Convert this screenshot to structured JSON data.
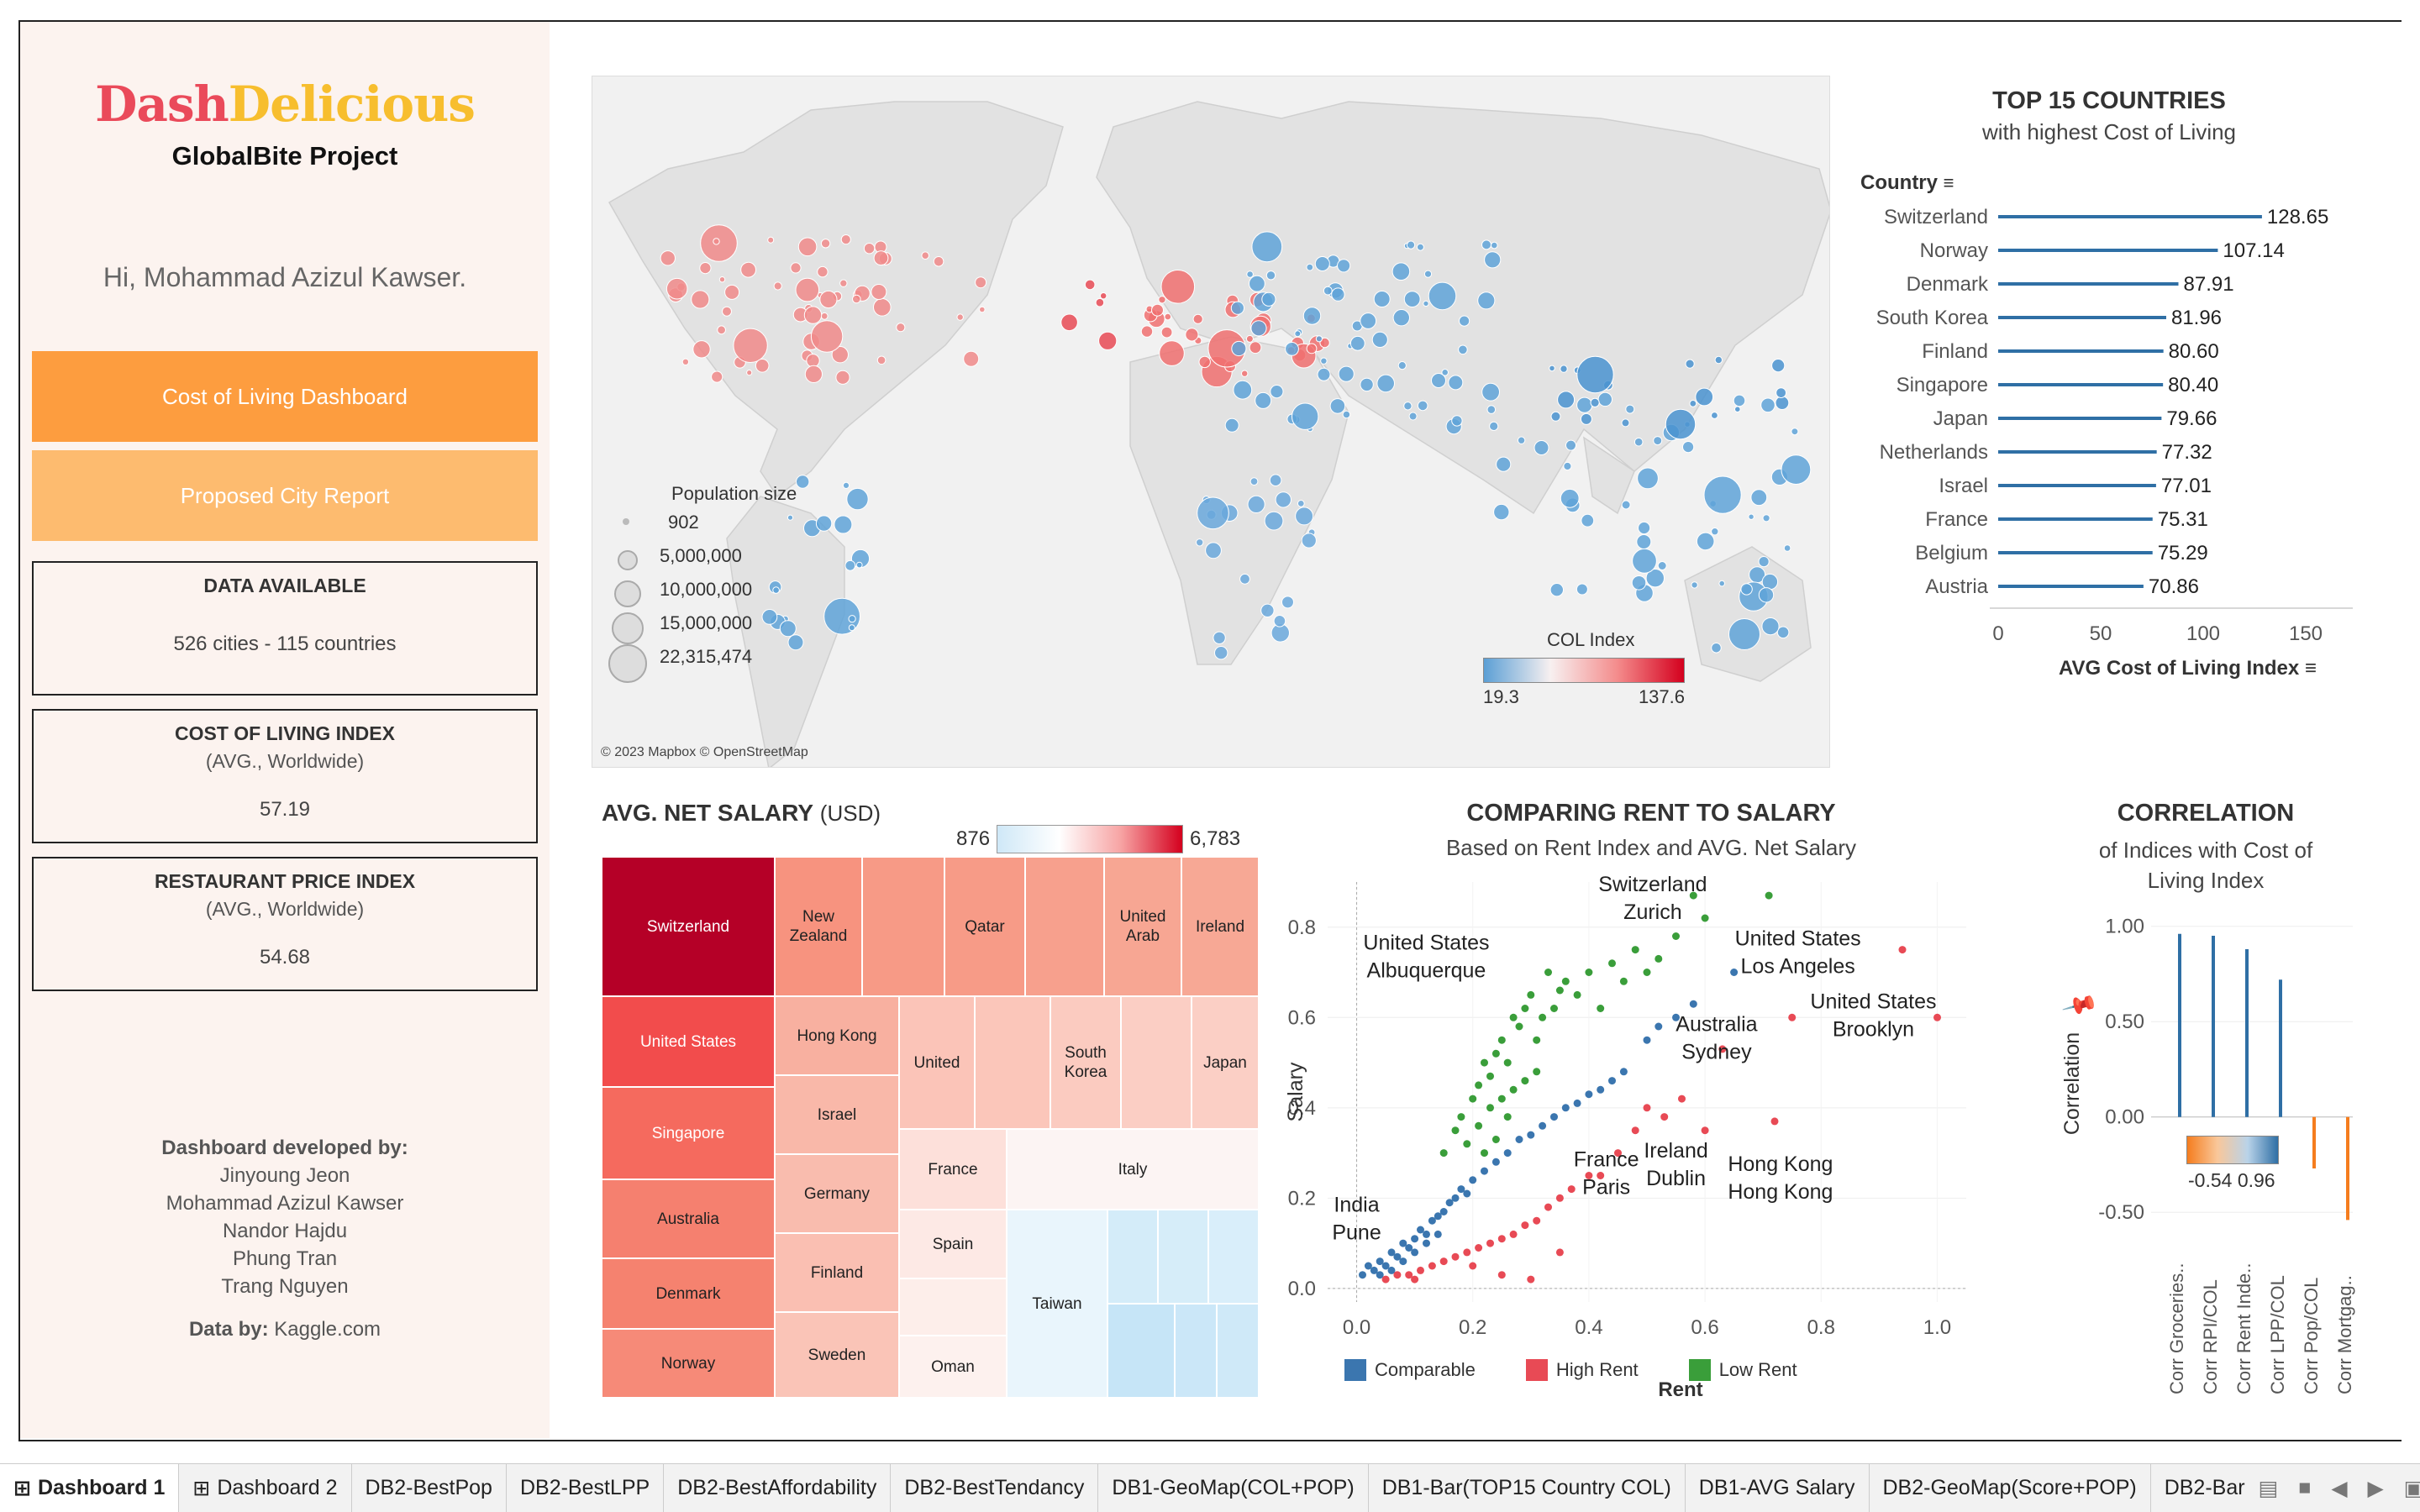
{
  "sidebar": {
    "logo_part1": "Dash",
    "logo_part2": "Delicious",
    "project": "GlobalBite Project",
    "greeting": "Hi, Mohammad Azizul Kawser.",
    "nav": [
      {
        "label": "Cost of Living Dashboard",
        "color": "#fd9d3f"
      },
      {
        "label": "Proposed City Report",
        "color": "#fdbb6f"
      }
    ],
    "stats": [
      {
        "title": "DATA AVAILABLE",
        "sub": "",
        "value": "526 cities - 115 countries"
      },
      {
        "title": "COST OF LIVING INDEX",
        "sub": "(AVG., Worldwide)",
        "value": "57.19"
      },
      {
        "title": "RESTAURANT PRICE INDEX",
        "sub": "(AVG., Worldwide)",
        "value": "54.68"
      }
    ],
    "credits_title": "Dashboard developed by:",
    "developers": [
      "Jinyoung Jeon",
      "Mohammad Azizul Kawser",
      "Nandor Hajdu",
      "Phung Tran",
      "Trang Nguyen"
    ],
    "data_by_label": "Data by:",
    "data_by_value": "Kaggle.com"
  },
  "map": {
    "attribution": "© 2023 Mapbox © OpenStreetMap",
    "pop_legend_title": "Population size",
    "pop_legend": [
      "902",
      "5,000,000",
      "10,000,000",
      "15,000,000",
      "22,315,474"
    ],
    "col_legend_title": "COL Index",
    "col_min": "19.3",
    "col_max": "137.6"
  },
  "top15": {
    "title": "TOP 15 COUNTRIES",
    "subtitle": "with highest Cost of Living",
    "dim_label": "Country",
    "measure_label": "AVG Cost of Living Index",
    "ticks": [
      "0",
      "50",
      "100",
      "150"
    ],
    "rows": [
      {
        "name": "Switzerland",
        "label": "128.65"
      },
      {
        "name": "Norway",
        "label": "107.14"
      },
      {
        "name": "Denmark",
        "label": "87.91"
      },
      {
        "name": "South Korea",
        "label": "81.96"
      },
      {
        "name": "Finland",
        "label": "80.60"
      },
      {
        "name": "Singapore",
        "label": "80.40"
      },
      {
        "name": "Japan",
        "label": "79.66"
      },
      {
        "name": "Netherlands",
        "label": "77.32"
      },
      {
        "name": "Israel",
        "label": "77.01"
      },
      {
        "name": "France",
        "label": "75.31"
      },
      {
        "name": "Belgium",
        "label": "75.29"
      },
      {
        "name": "Austria",
        "label": "70.86"
      }
    ]
  },
  "salary": {
    "title": "AVG. NET SALARY",
    "unit": "(USD)",
    "legend_min": "876",
    "legend_max": "6,783",
    "cells": [
      "Switzerland",
      "United States",
      "Singapore",
      "Australia",
      "Denmark",
      "Norway",
      "New Zealand",
      "Qatar",
      "United Arab",
      "Ireland",
      "Hong Kong",
      "United",
      "South Korea",
      "Japan",
      "Israel",
      "Germany",
      "Finland",
      "Sweden",
      "France",
      "Italy",
      "Spain",
      "Taiwan",
      "Oman"
    ]
  },
  "scatter": {
    "title": "COMPARING RENT TO SALARY",
    "subtitle": "Based on Rent Index and AVG. Net Salary",
    "xlabel": "Rent",
    "ylabel": "Salary",
    "xticks": [
      "0.0",
      "0.2",
      "0.4",
      "0.6",
      "0.8",
      "1.0"
    ],
    "yticks": [
      "0.0",
      "0.2",
      "0.4",
      "0.6",
      "0.8"
    ],
    "annotations": [
      {
        "l1": "Switzerland",
        "l2": "Zurich"
      },
      {
        "l1": "United States",
        "l2": "Albuquerque"
      },
      {
        "l1": "United States",
        "l2": "Los Angeles"
      },
      {
        "l1": "United States",
        "l2": "Brooklyn"
      },
      {
        "l1": "Australia",
        "l2": "Sydney"
      },
      {
        "l1": "France",
        "l2": "Paris"
      },
      {
        "l1": "Ireland",
        "l2": "Dublin"
      },
      {
        "l1": "Hong Kong",
        "l2": "Hong Kong"
      },
      {
        "l1": "India",
        "l2": "Pune"
      }
    ],
    "legend": [
      {
        "label": "Comparable",
        "color": "#3b76af"
      },
      {
        "label": "High Rent",
        "color": "#e84a55"
      },
      {
        "label": "Low Rent",
        "color": "#3a9e3a"
      }
    ]
  },
  "correlation": {
    "title": "CORRELATION",
    "subtitle_l1": "of Indices with Cost of",
    "subtitle_l2": "Living Index",
    "ylabel": "Correlation",
    "yticks": [
      "1.00",
      "0.50",
      "0.00",
      "-0.50"
    ],
    "legend_min": "-0.54",
    "legend_max": "0.96",
    "categories": [
      "Corr Groceries..",
      "Corr RPI/COL",
      "Corr Rent Inde..",
      "Corr LPP/COL",
      "Corr Pop/COL",
      "Corr Mortgag.."
    ]
  },
  "chart_data": [
    {
      "type": "bar",
      "title": "TOP 15 COUNTRIES",
      "subtitle": "with highest Cost of Living",
      "categories": [
        "Switzerland",
        "Norway",
        "Denmark",
        "South Korea",
        "Finland",
        "Singapore",
        "Japan",
        "Netherlands",
        "Israel",
        "France",
        "Belgium",
        "Austria"
      ],
      "values": [
        128.65,
        107.14,
        87.91,
        81.96,
        80.6,
        80.4,
        79.66,
        77.32,
        77.01,
        75.31,
        75.29,
        70.86
      ],
      "xlabel": "AVG Cost of Living Index",
      "ylabel": "Country",
      "xlim": [
        0,
        160
      ],
      "orientation": "horizontal"
    },
    {
      "type": "bar",
      "title": "CORRELATION",
      "subtitle": "of Indices with Cost of Living Index",
      "categories": [
        "Corr Groceries..",
        "Corr RPI/COL",
        "Corr Rent Inde..",
        "Corr LPP/COL",
        "Corr Pop/COL",
        "Corr Mortgag.."
      ],
      "values": [
        0.96,
        0.95,
        0.88,
        0.72,
        -0.27,
        -0.54
      ],
      "ylabel": "Correlation",
      "ylim": [
        -0.75,
        1.1
      ]
    },
    {
      "type": "scatter",
      "title": "COMPARING RENT TO SALARY",
      "subtitle": "Based on Rent Index and AVG. Net Salary",
      "xlabel": "Rent",
      "ylabel": "Salary",
      "xlim": [
        -0.05,
        1.05
      ],
      "ylim": [
        -0.03,
        0.9
      ],
      "series": [
        {
          "name": "Comparable",
          "points": [
            [
              0.01,
              0.03
            ],
            [
              0.02,
              0.05
            ],
            [
              0.03,
              0.04
            ],
            [
              0.04,
              0.06
            ],
            [
              0.05,
              0.05
            ],
            [
              0.06,
              0.08
            ],
            [
              0.07,
              0.07
            ],
            [
              0.08,
              0.1
            ],
            [
              0.09,
              0.09
            ],
            [
              0.1,
              0.11
            ],
            [
              0.11,
              0.13
            ],
            [
              0.12,
              0.12
            ],
            [
              0.13,
              0.15
            ],
            [
              0.14,
              0.16
            ],
            [
              0.15,
              0.17
            ],
            [
              0.16,
              0.19
            ],
            [
              0.17,
              0.2
            ],
            [
              0.18,
              0.22
            ],
            [
              0.19,
              0.21
            ],
            [
              0.2,
              0.24
            ],
            [
              0.22,
              0.26
            ],
            [
              0.24,
              0.28
            ],
            [
              0.26,
              0.3
            ],
            [
              0.28,
              0.33
            ],
            [
              0.3,
              0.34
            ],
            [
              0.32,
              0.36
            ],
            [
              0.34,
              0.38
            ],
            [
              0.36,
              0.4
            ],
            [
              0.38,
              0.41
            ],
            [
              0.4,
              0.43
            ],
            [
              0.42,
              0.44
            ],
            [
              0.44,
              0.46
            ],
            [
              0.46,
              0.48
            ],
            [
              0.5,
              0.55
            ],
            [
              0.52,
              0.58
            ],
            [
              0.55,
              0.6
            ],
            [
              0.58,
              0.63
            ],
            [
              0.65,
              0.7
            ],
            [
              0.04,
              0.03
            ],
            [
              0.06,
              0.04
            ],
            [
              0.08,
              0.06
            ],
            [
              0.1,
              0.08
            ],
            [
              0.12,
              0.1
            ],
            [
              0.14,
              0.12
            ]
          ]
        },
        {
          "name": "High Rent",
          "points": [
            [
              0.05,
              0.02
            ],
            [
              0.07,
              0.03
            ],
            [
              0.09,
              0.03
            ],
            [
              0.11,
              0.04
            ],
            [
              0.13,
              0.05
            ],
            [
              0.15,
              0.06
            ],
            [
              0.17,
              0.07
            ],
            [
              0.19,
              0.08
            ],
            [
              0.21,
              0.09
            ],
            [
              0.23,
              0.1
            ],
            [
              0.25,
              0.11
            ],
            [
              0.27,
              0.12
            ],
            [
              0.29,
              0.14
            ],
            [
              0.31,
              0.15
            ],
            [
              0.33,
              0.18
            ],
            [
              0.35,
              0.2
            ],
            [
              0.37,
              0.22
            ],
            [
              0.4,
              0.25
            ],
            [
              0.45,
              0.3
            ],
            [
              0.48,
              0.35
            ],
            [
              0.5,
              0.4
            ],
            [
              0.53,
              0.38
            ],
            [
              0.56,
              0.42
            ],
            [
              0.6,
              0.35
            ],
            [
              0.63,
              0.53
            ],
            [
              0.72,
              0.37
            ],
            [
              0.75,
              0.6
            ],
            [
              0.94,
              0.75
            ],
            [
              1.0,
              0.6
            ],
            [
              0.1,
              0.02
            ],
            [
              0.2,
              0.05
            ],
            [
              0.3,
              0.02
            ],
            [
              0.25,
              0.03
            ],
            [
              0.35,
              0.08
            ],
            [
              0.42,
              0.25
            ]
          ]
        },
        {
          "name": "Low Rent",
          "points": [
            [
              0.15,
              0.3
            ],
            [
              0.17,
              0.35
            ],
            [
              0.18,
              0.38
            ],
            [
              0.2,
              0.42
            ],
            [
              0.21,
              0.45
            ],
            [
              0.22,
              0.5
            ],
            [
              0.23,
              0.47
            ],
            [
              0.24,
              0.52
            ],
            [
              0.25,
              0.55
            ],
            [
              0.26,
              0.5
            ],
            [
              0.27,
              0.6
            ],
            [
              0.28,
              0.58
            ],
            [
              0.29,
              0.62
            ],
            [
              0.3,
              0.65
            ],
            [
              0.31,
              0.55
            ],
            [
              0.32,
              0.6
            ],
            [
              0.33,
              0.7
            ],
            [
              0.34,
              0.62
            ],
            [
              0.35,
              0.66
            ],
            [
              0.36,
              0.68
            ],
            [
              0.38,
              0.65
            ],
            [
              0.4,
              0.7
            ],
            [
              0.42,
              0.62
            ],
            [
              0.44,
              0.72
            ],
            [
              0.46,
              0.68
            ],
            [
              0.48,
              0.75
            ],
            [
              0.5,
              0.7
            ],
            [
              0.52,
              0.73
            ],
            [
              0.55,
              0.78
            ],
            [
              0.58,
              0.87
            ],
            [
              0.6,
              0.82
            ],
            [
              0.71,
              0.87
            ],
            [
              0.19,
              0.32
            ],
            [
              0.21,
              0.36
            ],
            [
              0.23,
              0.4
            ],
            [
              0.25,
              0.42
            ],
            [
              0.27,
              0.44
            ],
            [
              0.29,
              0.46
            ],
            [
              0.31,
              0.48
            ],
            [
              0.26,
              0.38
            ],
            [
              0.24,
              0.33
            ],
            [
              0.22,
              0.3
            ]
          ]
        }
      ]
    }
  ]
}
